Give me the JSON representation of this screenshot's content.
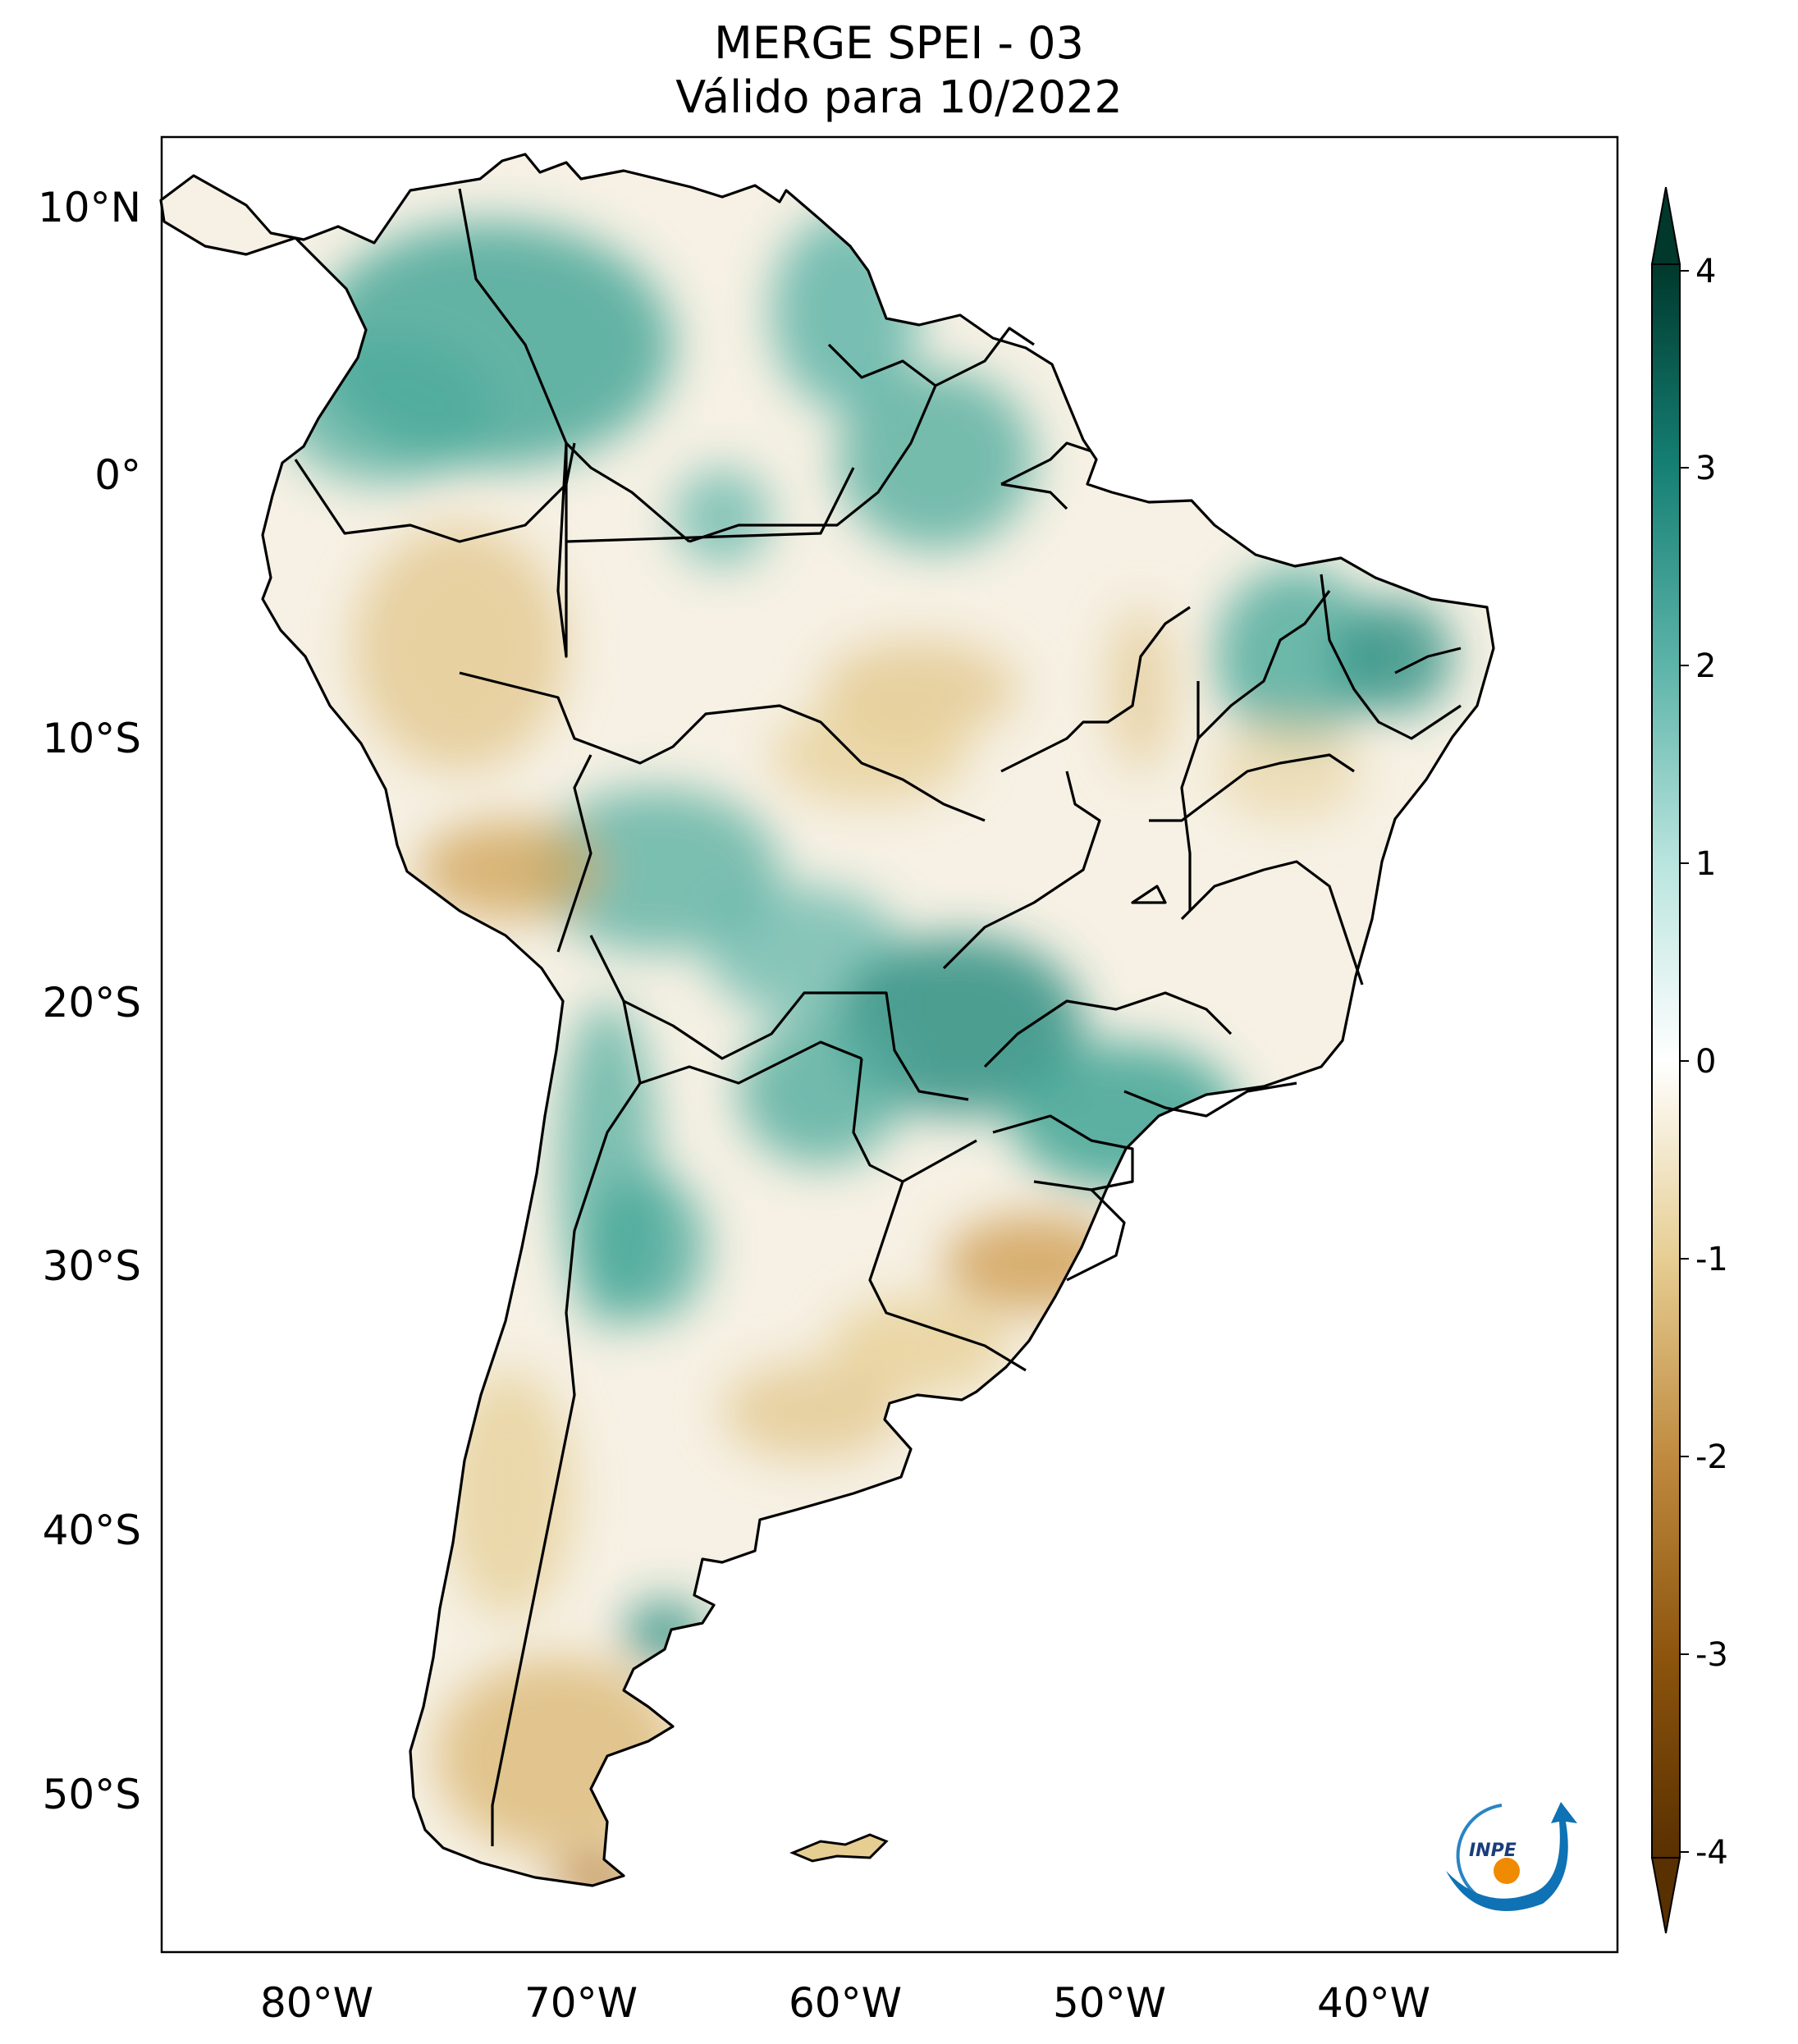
{
  "title_line1": "MERGE   SPEI - 03",
  "title_line2": "Válido para 10/2022",
  "lat_ticks": [
    "10°N",
    "0°",
    "10°S",
    "20°S",
    "30°S",
    "40°S",
    "50°S"
  ],
  "lon_ticks": [
    "80°W",
    "70°W",
    "60°W",
    "50°W",
    "40°W"
  ],
  "colorbar": {
    "ticks": [
      "4",
      "3",
      "2",
      "1",
      "0",
      "-1",
      "-2",
      "-3",
      "-4"
    ],
    "colors": {
      "max": "#00382c",
      "high": "#157f74",
      "mid_high": "#79c7bd",
      "zero": "#ffffff",
      "mid_low": "#e6cd92",
      "low": "#b07830",
      "min": "#593000"
    }
  },
  "logo_text": "INPE",
  "map_colors": {
    "teal": "#2f9b8d",
    "tan": "#d9b36c",
    "brown": "#b8803a"
  }
}
